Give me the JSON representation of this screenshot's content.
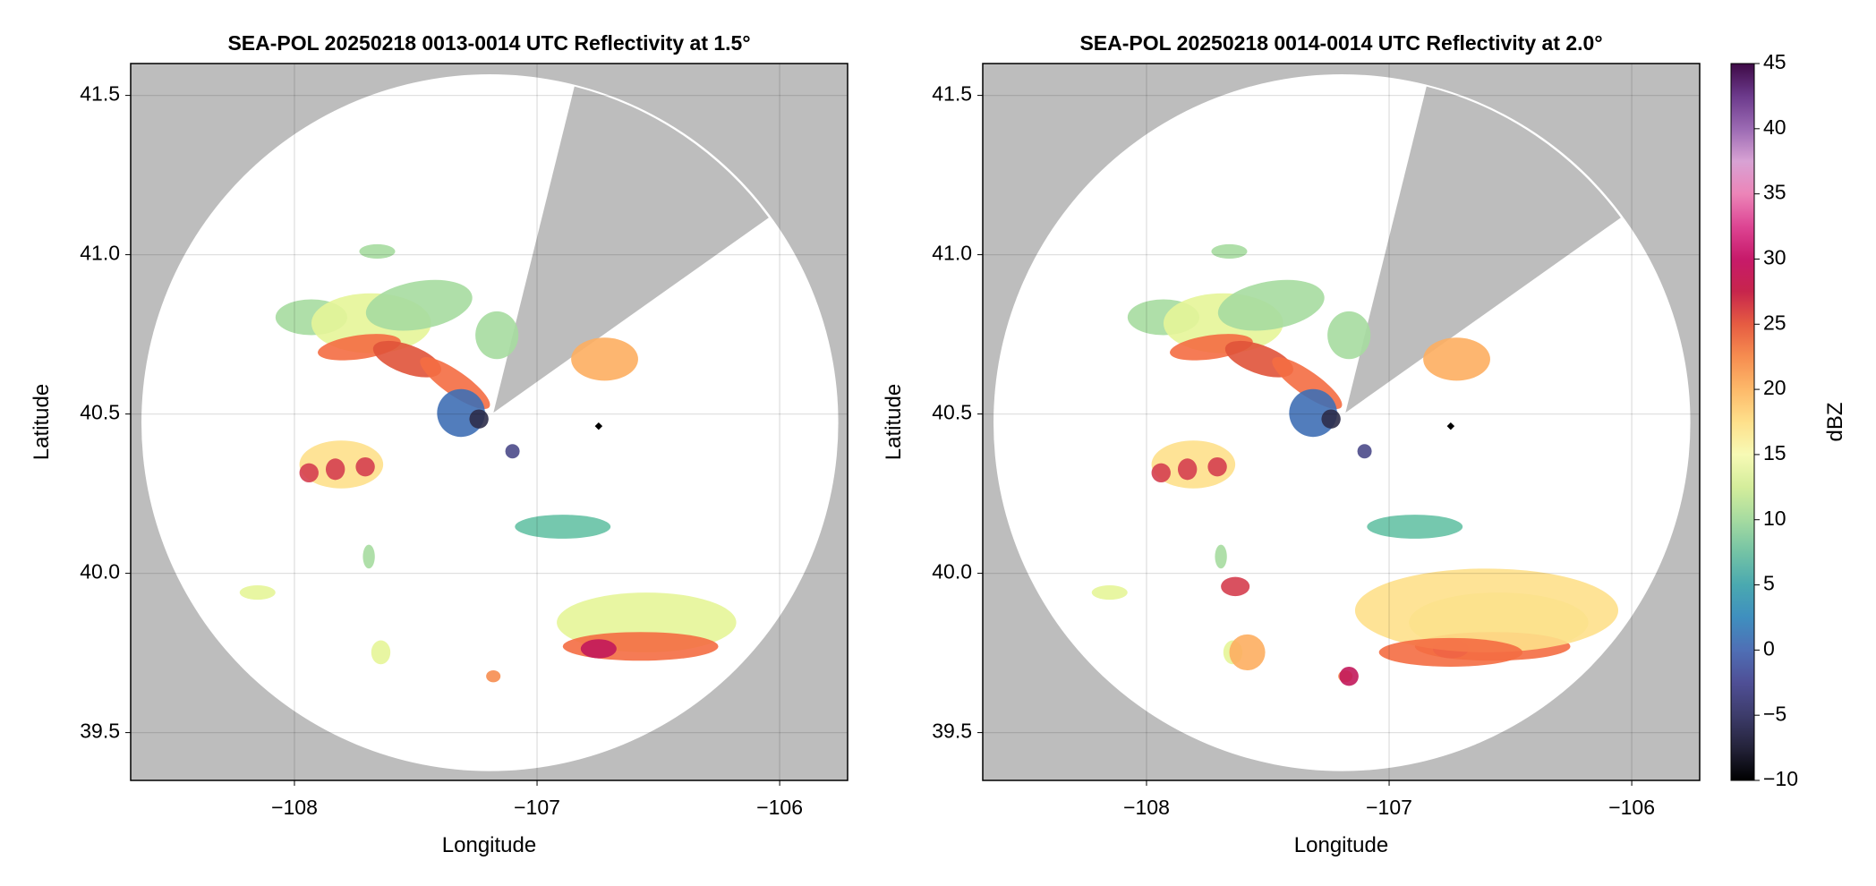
{
  "chart_data": [
    {
      "type": "radar",
      "title": "SEA-POL 20250218 0013-0014 UTC Reflectivity at 1.5°",
      "xlabel": "Longitude",
      "ylabel": "Latitude",
      "xlim": [
        -108.675,
        -105.72
      ],
      "ylim": [
        39.35,
        41.6
      ],
      "xticks": [
        {
          "value": -108,
          "label": "−108"
        },
        {
          "value": -107,
          "label": "−107"
        },
        {
          "value": -106,
          "label": "−106"
        }
      ],
      "yticks": [
        {
          "value": 39.5,
          "label": "39.5"
        },
        {
          "value": 40,
          "label": "40.0"
        },
        {
          "value": 40.5,
          "label": "40.5"
        },
        {
          "value": 41,
          "label": "41.0"
        },
        {
          "value": 41.5,
          "label": "41.5"
        }
      ],
      "grid": true
    },
    {
      "type": "radar",
      "title": "SEA-POL 20250218 0014-0014 UTC Reflectivity at 2.0°",
      "xlabel": "Longitude",
      "ylabel": "Latitude",
      "xlim": [
        -108.675,
        -105.72
      ],
      "ylim": [
        39.35,
        41.6
      ],
      "xticks": [
        {
          "value": -108,
          "label": "−108"
        },
        {
          "value": -107,
          "label": "−107"
        },
        {
          "value": -106,
          "label": "−106"
        }
      ],
      "yticks": [
        {
          "value": 39.5,
          "label": "39.5"
        },
        {
          "value": 40,
          "label": "40.0"
        },
        {
          "value": 40.5,
          "label": "40.5"
        },
        {
          "value": 41,
          "label": "41.0"
        },
        {
          "value": 41.5,
          "label": "41.5"
        }
      ],
      "grid": true
    },
    {
      "type": "colorbar",
      "label": "dBZ",
      "lim": [
        -10,
        45
      ],
      "ticks": [
        {
          "value": -10,
          "label": "−10"
        },
        {
          "value": -5,
          "label": "−5"
        },
        0,
        5,
        10,
        15,
        20,
        25,
        30,
        35,
        40,
        45
      ],
      "colors": [
        "#000000",
        "#24233a",
        "#3d3c6b",
        "#4f4f96",
        "#4f6fb5",
        "#3f8fbf",
        "#4aa9b0",
        "#74c3a5",
        "#a6dba0",
        "#d4ed9b",
        "#f7fab5",
        "#fee08b",
        "#fdb96a",
        "#f68d50",
        "#e65c42",
        "#c7254c",
        "#c71a6a",
        "#dd4593",
        "#ec85b8",
        "#d8a2d4",
        "#9b6ab3",
        "#6c3a8c",
        "#3e0a46"
      ]
    }
  ]
}
